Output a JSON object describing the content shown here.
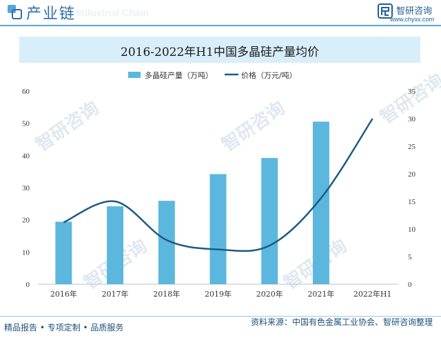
{
  "header": {
    "title": "产业链",
    "watermark": "Industrial Chain",
    "brand_name": "智研咨询",
    "brand_url": "www.chyxx.com"
  },
  "watermark_text": "智研咨询",
  "footer": {
    "left": "精品报告 • 专项定制 • 品质服务",
    "right": "资料来源：中国有色金属工业协会、智研咨询整理"
  },
  "colors": {
    "bar": "#5cb7df",
    "line": "#1a5b86",
    "title_bg": "#d8eefa",
    "accent": "#2e6fa8"
  },
  "chart_data": {
    "type": "bar",
    "title": "2016-2022年H1中国多晶硅产量均价",
    "categories": [
      "2016年",
      "2017年",
      "2018年",
      "2019年",
      "2020年",
      "2021年",
      "2022年H1"
    ],
    "series": [
      {
        "name": "多晶硅产量（万吨）",
        "type": "bar",
        "axis": "left",
        "values": [
          19.4,
          24.2,
          25.9,
          34.2,
          39.2,
          50.5,
          null
        ]
      },
      {
        "name": "价格（万元/吨）",
        "type": "line",
        "axis": "right",
        "values": [
          11.2,
          15,
          8,
          6.3,
          7,
          15.6,
          30
        ]
      }
    ],
    "y_left": {
      "min": 0,
      "max": 60,
      "ticks": [
        0,
        10,
        20,
        30,
        40,
        50,
        60
      ]
    },
    "y_right": {
      "min": 0,
      "max": 35,
      "ticks": [
        0,
        5,
        10,
        15,
        20,
        25,
        30,
        35
      ]
    },
    "legend_position": "top-center",
    "grid": false
  }
}
